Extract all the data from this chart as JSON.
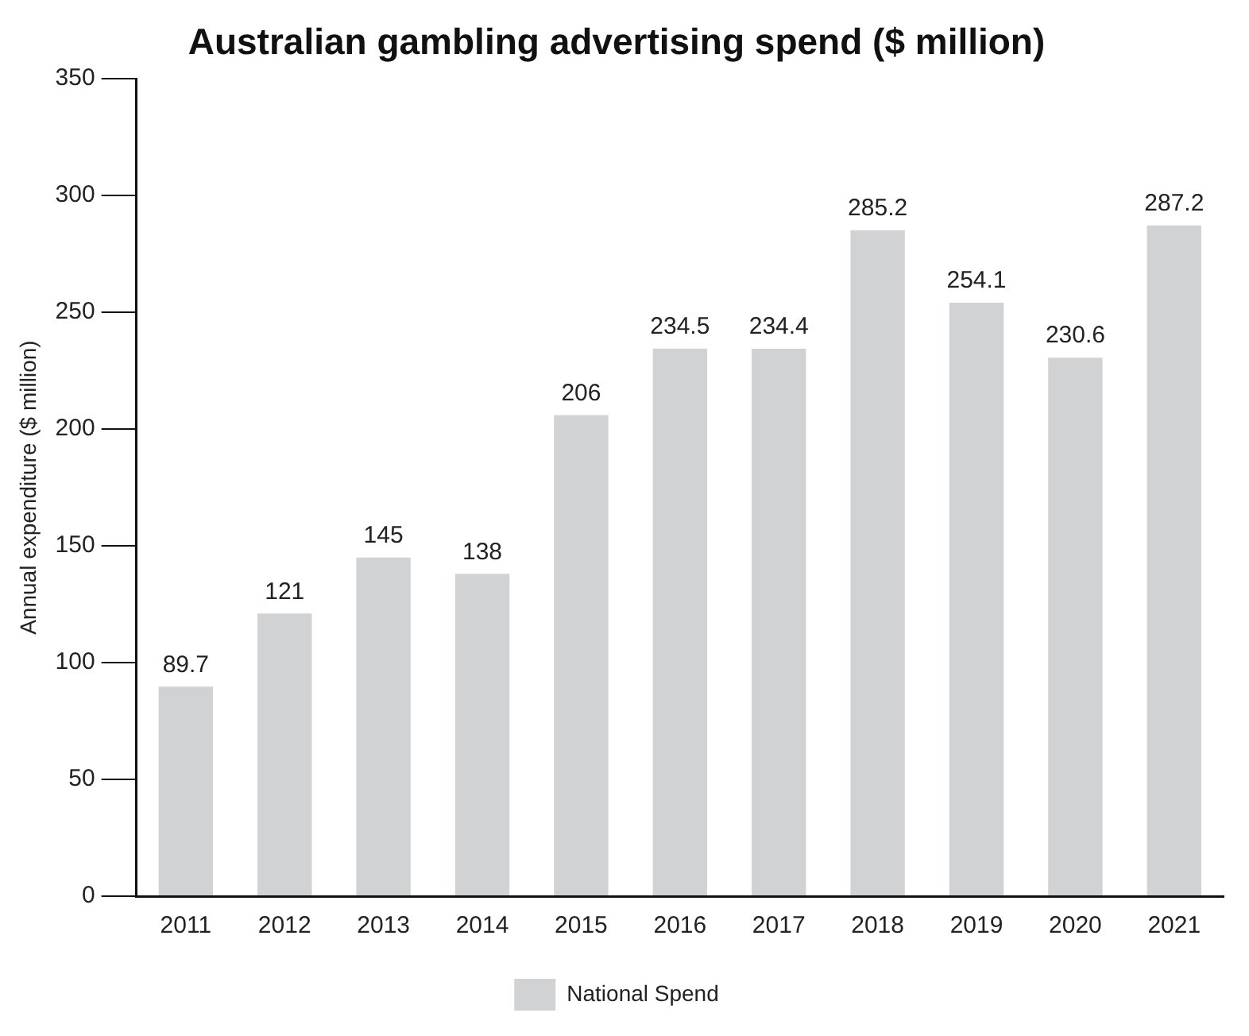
{
  "chart_data": {
    "type": "bar",
    "title": "Australian gambling advertising spend ($ million)",
    "ylabel": "Annual expenditure ($ million)",
    "categories": [
      "2011",
      "2012",
      "2013",
      "2014",
      "2015",
      "2016",
      "2017",
      "2018",
      "2019",
      "2020",
      "2021"
    ],
    "series": [
      {
        "name": "National Spend",
        "color": "#d1d2d4",
        "values": [
          89.7,
          121,
          145,
          138,
          206,
          234.5,
          234.4,
          285.2,
          254.1,
          230.6,
          287.2
        ]
      }
    ],
    "ylim": [
      0,
      350
    ],
    "yticks": [
      0,
      50,
      100,
      150,
      200,
      250,
      300,
      350
    ],
    "grid": false,
    "legend": "bottom",
    "data_labels": true
  }
}
